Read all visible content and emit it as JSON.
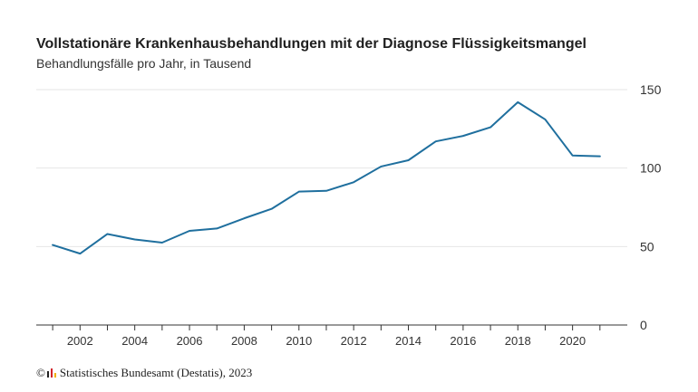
{
  "chart_data": {
    "type": "line",
    "title": "Vollstationäre Krankenhausbehandlungen mit der Diagnose Flüssigkeitsmangel",
    "subtitle": "Behandlungsfälle pro Jahr, in Tausend",
    "x": [
      2001,
      2002,
      2003,
      2004,
      2005,
      2006,
      2007,
      2008,
      2009,
      2010,
      2011,
      2012,
      2013,
      2014,
      2015,
      2016,
      2017,
      2018,
      2019,
      2020,
      2021
    ],
    "series": [
      {
        "values": [
          51,
          45.5,
          58,
          54.5,
          52.5,
          60,
          61.5,
          68,
          74,
          85,
          85.5,
          91,
          101,
          105,
          117,
          120.5,
          126,
          142,
          131,
          108,
          107.5
        ]
      }
    ],
    "x_tick_labels": [
      "2002",
      "2004",
      "2006",
      "2008",
      "2010",
      "2012",
      "2014",
      "2016",
      "2018",
      "2020"
    ],
    "y_tick_labels": [
      "0",
      "50",
      "100",
      "150"
    ],
    "ylim": [
      0,
      150
    ],
    "xlim": [
      2000.4,
      2022
    ],
    "y_axis_position": "right",
    "grid": "horizontal",
    "line_color": "#1f6f9e"
  },
  "source": {
    "copyright": "©",
    "text": "Statistisches Bundesamt (Destatis), 2023",
    "logo_colors": [
      "#222222",
      "#d2232a",
      "#f2b100"
    ]
  }
}
